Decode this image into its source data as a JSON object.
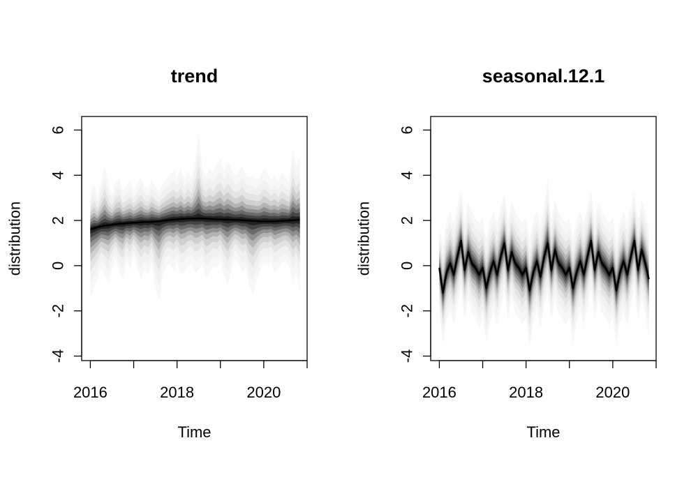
{
  "chart_data": [
    {
      "type": "area",
      "title": "trend",
      "xlabel": "Time",
      "ylabel": "distribution",
      "xlim": [
        2015.8,
        2021.0
      ],
      "ylim": [
        -4.2,
        6.6
      ],
      "x_ticks": [
        2016,
        2017,
        2018,
        2019,
        2020,
        2021
      ],
      "x_tick_labels": [
        "2016",
        "",
        "2018",
        "",
        "2020",
        ""
      ],
      "y_ticks": [
        -4,
        -2,
        0,
        2,
        4,
        6
      ],
      "y_tick_labels": [
        "-4",
        "-2",
        "0",
        "2",
        "4",
        "6"
      ],
      "grid": false,
      "x": [
        2016.0,
        2016.083,
        2016.167,
        2016.25,
        2016.333,
        2016.417,
        2016.5,
        2016.583,
        2016.667,
        2016.75,
        2016.833,
        2016.917,
        2017.0,
        2017.083,
        2017.167,
        2017.25,
        2017.333,
        2017.417,
        2017.5,
        2017.583,
        2017.667,
        2017.75,
        2017.833,
        2017.917,
        2018.0,
        2018.083,
        2018.167,
        2018.25,
        2018.333,
        2018.417,
        2018.5,
        2018.583,
        2018.667,
        2018.75,
        2018.833,
        2018.917,
        2019.0,
        2019.083,
        2019.167,
        2019.25,
        2019.333,
        2019.417,
        2019.5,
        2019.583,
        2019.667,
        2019.75,
        2019.833,
        2019.917,
        2020.0,
        2020.083,
        2020.167,
        2020.25,
        2020.333,
        2020.417,
        2020.5,
        2020.583,
        2020.667,
        2020.75,
        2020.833
      ],
      "median": [
        1.6,
        1.65,
        1.7,
        1.74,
        1.77,
        1.79,
        1.81,
        1.83,
        1.85,
        1.86,
        1.88,
        1.89,
        1.9,
        1.91,
        1.92,
        1.93,
        1.93,
        1.94,
        1.95,
        1.96,
        1.98,
        2.0,
        2.02,
        2.04,
        2.05,
        2.06,
        2.07,
        2.08,
        2.08,
        2.09,
        2.09,
        2.09,
        2.08,
        2.07,
        2.06,
        2.05,
        2.05,
        2.04,
        2.04,
        2.03,
        2.02,
        2.02,
        2.01,
        2.0,
        1.99,
        1.98,
        1.97,
        1.96,
        1.96,
        1.96,
        1.96,
        1.96,
        1.97,
        1.98,
        1.99,
        2.0,
        2.01,
        2.02,
        2.03
      ],
      "outer_lower": [
        -1.4,
        -1.0,
        -0.6,
        -0.1,
        -0.4,
        -0.7,
        -0.1,
        0.3,
        -0.3,
        -0.6,
        0.2,
        -0.2,
        0.4,
        -0.1,
        -0.6,
        -0.2,
        -0.4,
        0.1,
        -0.9,
        -1.6,
        -0.5,
        0.0,
        0.1,
        -0.2,
        0.2,
        -0.4,
        -0.3,
        0.0,
        0.1,
        -0.3,
        -0.2,
        0.1,
        -0.5,
        -0.3,
        0.0,
        -0.1,
        0.2,
        -0.4,
        -0.9,
        -0.2,
        0.3,
        0.1,
        -0.3,
        -0.1,
        -0.9,
        -1.3,
        -0.7,
        -0.2,
        0.1,
        0.0,
        0.2,
        -0.3,
        -0.1,
        0.1,
        0.2,
        0.0,
        -0.7,
        -0.3,
        -1.1
      ],
      "outer_upper": [
        3.2,
        3.6,
        3.1,
        3.8,
        4.4,
        3.6,
        3.2,
        3.7,
        3.9,
        3.3,
        3.5,
        3.7,
        3.3,
        3.6,
        3.9,
        3.5,
        3.4,
        3.8,
        3.5,
        3.3,
        3.6,
        3.8,
        4.0,
        4.2,
        3.9,
        4.3,
        3.8,
        4.2,
        3.9,
        4.7,
        5.8,
        4.3,
        4.0,
        4.3,
        4.1,
        4.5,
        4.7,
        4.2,
        4.6,
        4.3,
        4.0,
        4.1,
        4.4,
        4.0,
        3.9,
        3.9,
        3.8,
        3.9,
        4.3,
        4.1,
        3.8,
        4.0,
        3.7,
        4.1,
        3.9,
        3.7,
        5.2,
        4.4,
        4.8
      ]
    },
    {
      "type": "area",
      "title": "seasonal.12.1",
      "xlabel": "Time",
      "ylabel": "distribution",
      "xlim": [
        2015.8,
        2021.0
      ],
      "ylim": [
        -4.2,
        6.6
      ],
      "x_ticks": [
        2016,
        2017,
        2018,
        2019,
        2020,
        2021
      ],
      "x_tick_labels": [
        "2016",
        "",
        "2018",
        "",
        "2020",
        ""
      ],
      "y_ticks": [
        -4,
        -2,
        0,
        2,
        4,
        6
      ],
      "y_tick_labels": [
        "-4",
        "-2",
        "0",
        "2",
        "4",
        "6"
      ],
      "grid": false,
      "x": [
        2016.0,
        2016.083,
        2016.167,
        2016.25,
        2016.333,
        2016.417,
        2016.5,
        2016.583,
        2016.667,
        2016.75,
        2016.833,
        2016.917,
        2017.0,
        2017.083,
        2017.167,
        2017.25,
        2017.333,
        2017.417,
        2017.5,
        2017.583,
        2017.667,
        2017.75,
        2017.833,
        2017.917,
        2018.0,
        2018.083,
        2018.167,
        2018.25,
        2018.333,
        2018.417,
        2018.5,
        2018.583,
        2018.667,
        2018.75,
        2018.833,
        2018.917,
        2019.0,
        2019.083,
        2019.167,
        2019.25,
        2019.333,
        2019.417,
        2019.5,
        2019.583,
        2019.667,
        2019.75,
        2019.833,
        2019.917,
        2020.0,
        2020.083,
        2020.167,
        2020.25,
        2020.333,
        2020.417,
        2020.5,
        2020.583,
        2020.667,
        2020.75,
        2020.833
      ],
      "median": [
        -0.1,
        -1.2,
        -0.3,
        0.1,
        -0.4,
        0.4,
        1.1,
        -0.2,
        0.6,
        0.1,
        -0.1,
        -0.4,
        -0.1,
        -1.0,
        -0.3,
        0.2,
        -0.4,
        0.4,
        1.0,
        -0.2,
        0.6,
        0.1,
        -0.1,
        -0.4,
        -0.1,
        -1.1,
        -0.3,
        0.2,
        -0.5,
        0.4,
        1.0,
        -0.2,
        0.7,
        0.1,
        -0.1,
        -0.4,
        -0.1,
        -1.0,
        -0.3,
        0.2,
        -0.4,
        0.4,
        1.1,
        -0.2,
        0.6,
        0.1,
        -0.1,
        -0.4,
        -0.1,
        -1.1,
        -0.3,
        0.2,
        -0.4,
        0.4,
        1.1,
        -0.2,
        0.7,
        0.1,
        -0.6
      ],
      "outer_lower": [
        -2.0,
        -3.5,
        -2.4,
        -2.0,
        -2.6,
        -1.8,
        -1.0,
        -2.4,
        -1.5,
        -2.1,
        -2.3,
        -2.8,
        -2.3,
        -3.4,
        -2.5,
        -2.0,
        -2.7,
        -1.8,
        -1.1,
        -2.4,
        -1.4,
        -2.1,
        -2.3,
        -2.6,
        -2.3,
        -3.6,
        -2.5,
        -2.0,
        -2.8,
        -1.8,
        -1.2,
        -2.4,
        -1.5,
        -2.1,
        -2.3,
        -2.6,
        -2.3,
        -3.5,
        -2.5,
        -2.0,
        -2.7,
        -1.8,
        -1.0,
        -2.4,
        -1.5,
        -2.1,
        -2.3,
        -2.6,
        -2.3,
        -3.5,
        -2.5,
        -2.0,
        -2.7,
        -1.8,
        -1.0,
        -2.4,
        -1.5,
        -2.1,
        -3.1
      ],
      "outer_upper": [
        1.8,
        0.9,
        2.0,
        2.4,
        1.9,
        2.6,
        3.4,
        2.0,
        2.8,
        2.4,
        2.1,
        1.9,
        2.1,
        1.2,
        2.0,
        2.4,
        1.9,
        2.6,
        3.2,
        2.0,
        2.8,
        2.4,
        2.1,
        1.9,
        2.1,
        1.1,
        2.0,
        2.4,
        1.8,
        2.6,
        3.8,
        2.0,
        2.9,
        2.4,
        2.1,
        1.9,
        2.1,
        1.2,
        2.0,
        2.4,
        1.9,
        2.6,
        3.3,
        2.0,
        2.8,
        2.4,
        2.1,
        1.9,
        2.1,
        1.1,
        2.0,
        2.4,
        1.9,
        2.6,
        3.3,
        2.0,
        2.9,
        2.4,
        1.6
      ]
    }
  ]
}
